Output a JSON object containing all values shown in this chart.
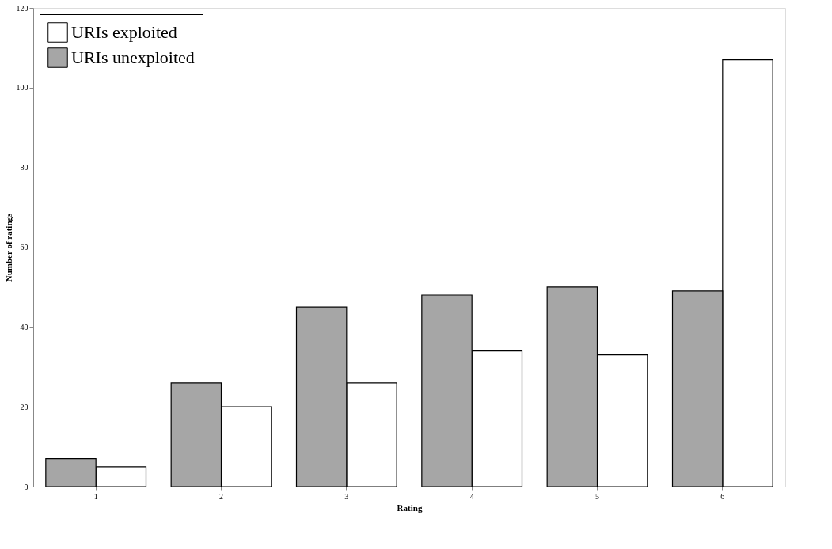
{
  "chart_data": {
    "type": "bar",
    "xlabel": "Rating",
    "ylabel": "Number of ratings",
    "categories": [
      "1",
      "2",
      "3",
      "4",
      "5",
      "6"
    ],
    "series": [
      {
        "name": "URIs exploited",
        "color": "#ffffff",
        "values": [
          5,
          20,
          26,
          34,
          33,
          107
        ]
      },
      {
        "name": "URIs unexploited",
        "color": "#a6a6a6",
        "values": [
          7,
          26,
          45,
          48,
          50,
          49
        ]
      }
    ],
    "ylim": [
      0,
      120
    ],
    "yticks": [
      0,
      20,
      40,
      60,
      80,
      100,
      120
    ],
    "grid": false,
    "legend": "top left"
  }
}
